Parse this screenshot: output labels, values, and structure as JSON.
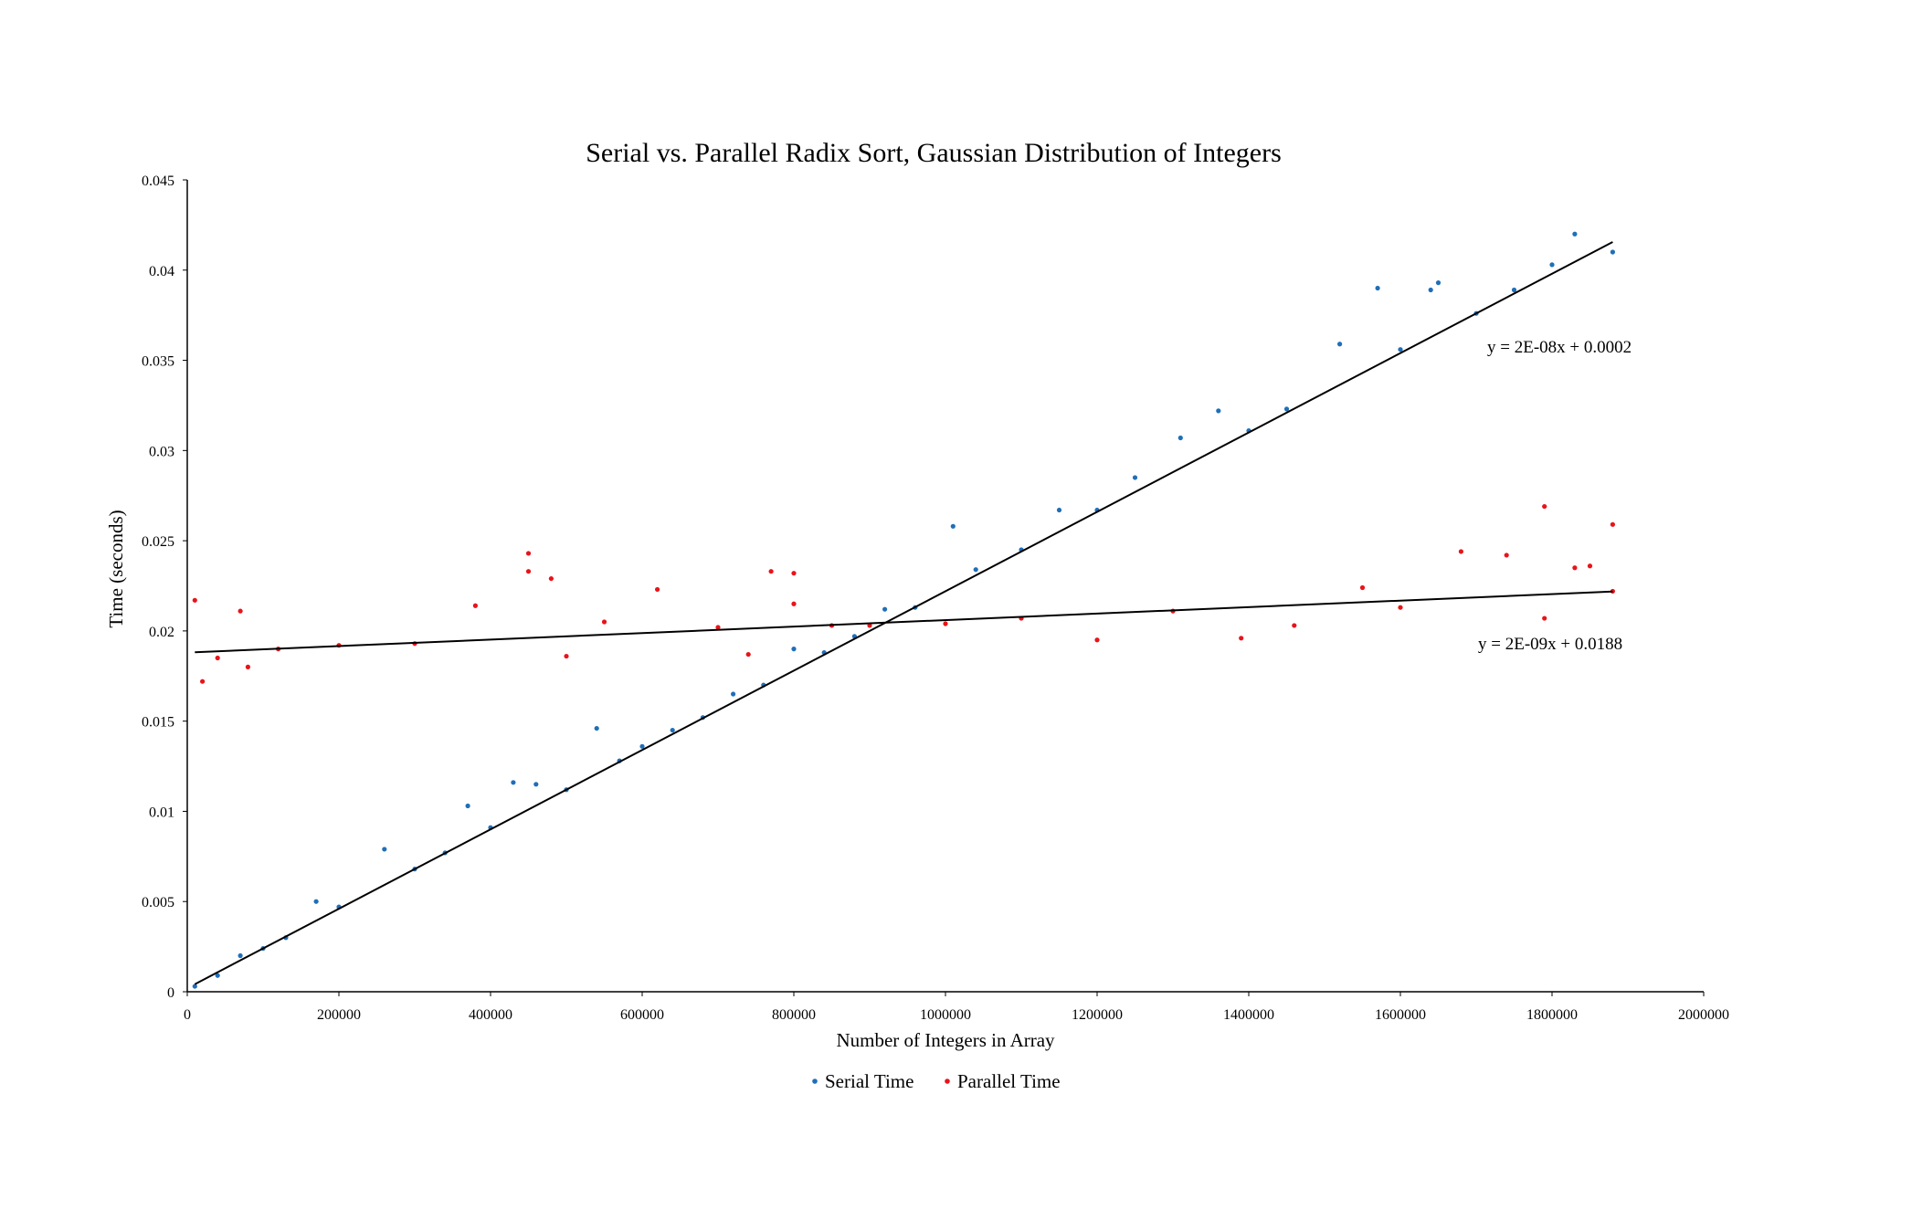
{
  "chart_data": {
    "type": "scatter",
    "title": "Serial vs. Parallel Radix Sort, Gaussian Distribution of Integers",
    "xlabel": "Number of Integers in Array",
    "ylabel": "Time (seconds)",
    "xlim": [
      0,
      2000000
    ],
    "ylim": [
      0,
      0.045
    ],
    "x_ticks": [
      0,
      200000,
      400000,
      600000,
      800000,
      1000000,
      1200000,
      1400000,
      1600000,
      1800000,
      2000000
    ],
    "x_tick_labels": [
      "0",
      "200000",
      "400000",
      "600000",
      "800000",
      "1000000",
      "1200000",
      "1400000",
      "1600000",
      "1800000",
      "2000000"
    ],
    "y_ticks": [
      0,
      0.005,
      0.01,
      0.015,
      0.02,
      0.025,
      0.03,
      0.035,
      0.04,
      0.045
    ],
    "y_tick_labels": [
      "0",
      "0.005",
      "0.01",
      "0.015",
      "0.02",
      "0.025",
      "0.03",
      "0.035",
      "0.04",
      "0.045"
    ],
    "grid": false,
    "legend_position": "bottom",
    "series": [
      {
        "name": "Serial Time",
        "color": "#1f6fb8",
        "trendline": {
          "slope": 2.2e-08,
          "intercept": 0.0002,
          "x_range": [
            10000,
            1880000
          ],
          "label": "y = 2E-08x + 0.0002"
        },
        "points": [
          [
            10000,
            0.0003
          ],
          [
            40000,
            0.0009
          ],
          [
            70000,
            0.002
          ],
          [
            100000,
            0.0024
          ],
          [
            130000,
            0.003
          ],
          [
            170000,
            0.005
          ],
          [
            200000,
            0.0047
          ],
          [
            260000,
            0.0079
          ],
          [
            300000,
            0.0068
          ],
          [
            340000,
            0.0077
          ],
          [
            370000,
            0.0103
          ],
          [
            400000,
            0.0091
          ],
          [
            430000,
            0.0116
          ],
          [
            460000,
            0.0115
          ],
          [
            500000,
            0.0112
          ],
          [
            540000,
            0.0146
          ],
          [
            570000,
            0.0128
          ],
          [
            600000,
            0.0136
          ],
          [
            640000,
            0.0145
          ],
          [
            680000,
            0.0152
          ],
          [
            720000,
            0.0165
          ],
          [
            760000,
            0.017
          ],
          [
            800000,
            0.019
          ],
          [
            840000,
            0.0188
          ],
          [
            880000,
            0.0197
          ],
          [
            920000,
            0.0212
          ],
          [
            960000,
            0.0213
          ],
          [
            1010000,
            0.0258
          ],
          [
            1040000,
            0.0234
          ],
          [
            1100000,
            0.0245
          ],
          [
            1150000,
            0.0267
          ],
          [
            1200000,
            0.0267
          ],
          [
            1250000,
            0.0285
          ],
          [
            1310000,
            0.0307
          ],
          [
            1360000,
            0.0322
          ],
          [
            1400000,
            0.0311
          ],
          [
            1450000,
            0.0323
          ],
          [
            1520000,
            0.0359
          ],
          [
            1570000,
            0.039
          ],
          [
            1600000,
            0.0356
          ],
          [
            1640000,
            0.0389
          ],
          [
            1650000,
            0.0393
          ],
          [
            1700000,
            0.0376
          ],
          [
            1750000,
            0.0389
          ],
          [
            1800000,
            0.0403
          ],
          [
            1830000,
            0.042
          ],
          [
            1880000,
            0.041
          ]
        ]
      },
      {
        "name": "Parallel Time",
        "color": "#e8141a",
        "trendline": {
          "slope": 1.8e-09,
          "intercept": 0.0188,
          "x_range": [
            10000,
            1880000
          ],
          "label": "y = 2E-09x + 0.0188"
        },
        "points": [
          [
            10000,
            0.0217
          ],
          [
            20000,
            0.0172
          ],
          [
            40000,
            0.0185
          ],
          [
            70000,
            0.0211
          ],
          [
            80000,
            0.018
          ],
          [
            120000,
            0.019
          ],
          [
            200000,
            0.0192
          ],
          [
            300000,
            0.0193
          ],
          [
            380000,
            0.0214
          ],
          [
            450000,
            0.0243
          ],
          [
            450000,
            0.0233
          ],
          [
            480000,
            0.0229
          ],
          [
            500000,
            0.0186
          ],
          [
            550000,
            0.0205
          ],
          [
            620000,
            0.0223
          ],
          [
            700000,
            0.0202
          ],
          [
            740000,
            0.0187
          ],
          [
            770000,
            0.0233
          ],
          [
            800000,
            0.0232
          ],
          [
            800000,
            0.0215
          ],
          [
            850000,
            0.0203
          ],
          [
            900000,
            0.0203
          ],
          [
            1000000,
            0.0204
          ],
          [
            1100000,
            0.0207
          ],
          [
            1200000,
            0.0195
          ],
          [
            1300000,
            0.0211
          ],
          [
            1390000,
            0.0196
          ],
          [
            1460000,
            0.0203
          ],
          [
            1550000,
            0.0224
          ],
          [
            1600000,
            0.0213
          ],
          [
            1680000,
            0.0244
          ],
          [
            1740000,
            0.0242
          ],
          [
            1790000,
            0.0269
          ],
          [
            1790000,
            0.0207
          ],
          [
            1830000,
            0.0235
          ],
          [
            1850000,
            0.0236
          ],
          [
            1880000,
            0.0259
          ],
          [
            1880000,
            0.0222
          ]
        ]
      }
    ]
  }
}
